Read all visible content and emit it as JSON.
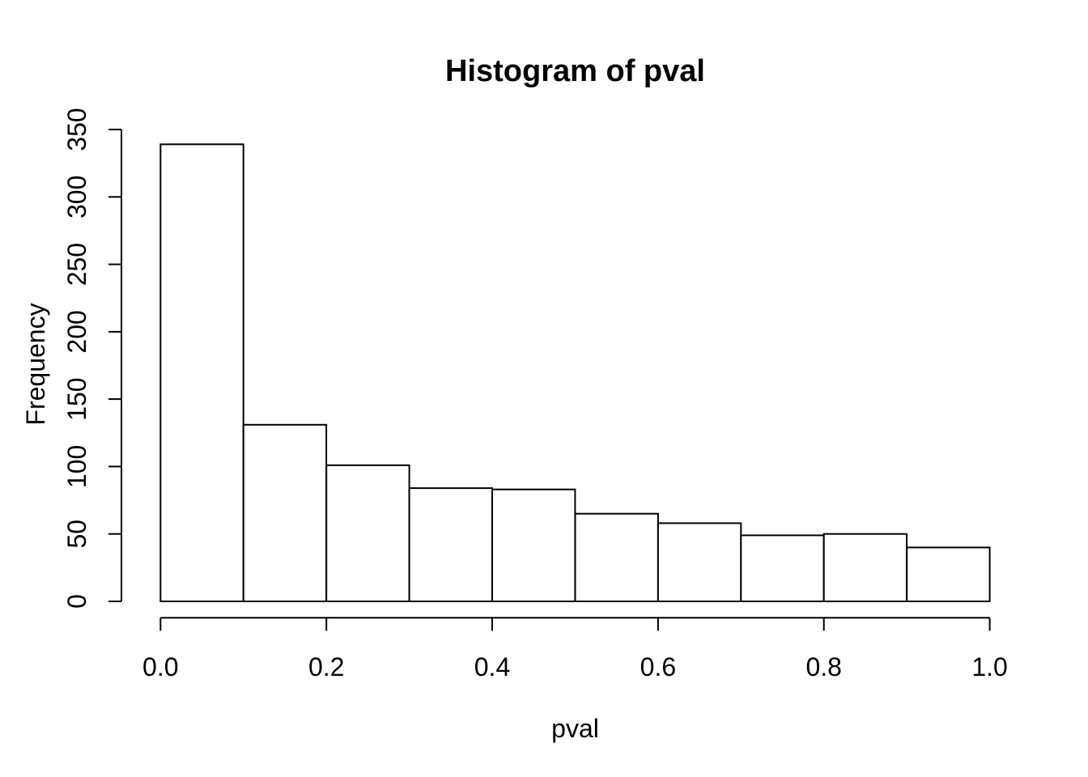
{
  "chart_data": {
    "type": "bar",
    "subtype": "histogram",
    "title": "Histogram of pval",
    "xlabel": "pval",
    "ylabel": "Frequency",
    "bin_edges": [
      0.0,
      0.1,
      0.2,
      0.3,
      0.4,
      0.5,
      0.6,
      0.7,
      0.8,
      0.9,
      1.0
    ],
    "values": [
      339,
      131,
      101,
      84,
      83,
      65,
      58,
      49,
      50,
      40
    ],
    "xlim": [
      0.0,
      1.0
    ],
    "ylim": [
      0,
      350
    ],
    "xticks": [
      0.0,
      0.2,
      0.4,
      0.6,
      0.8,
      1.0
    ],
    "xtick_labels": [
      "0.0",
      "0.2",
      "0.4",
      "0.6",
      "0.8",
      "1.0"
    ],
    "yticks": [
      0,
      50,
      100,
      150,
      200,
      250,
      300,
      350
    ],
    "ytick_labels": [
      "0",
      "50",
      "100",
      "150",
      "200",
      "250",
      "300",
      "350"
    ],
    "grid": false,
    "legend": null,
    "colors": {
      "background": "#ffffff",
      "bar_fill": "#ffffff",
      "stroke": "#000000",
      "text": "#000000"
    }
  }
}
